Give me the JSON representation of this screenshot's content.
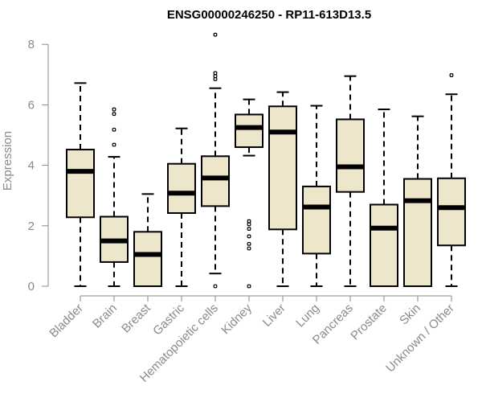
{
  "chart_data": {
    "type": "boxplot",
    "title": "ENSG00000246250 - RP11-613D13.5",
    "ylabel": "Expression",
    "xlabel": "",
    "ylim": [
      0,
      8.3
    ],
    "yticks": [
      0,
      2,
      4,
      6,
      8
    ],
    "grid": false,
    "colors": {
      "box_fill": "#ede6cb",
      "axis": "#8a8a8a"
    },
    "categories": [
      "Bladder",
      "Brain",
      "Breast",
      "Gastric",
      "Hematopoietic cells",
      "Kidney",
      "Liver",
      "Lung",
      "Pancreas",
      "Prostate",
      "Skin",
      "Unknown / Other"
    ],
    "boxes": [
      {
        "min": 0,
        "q1": 2.28,
        "median": 3.8,
        "q3": 4.52,
        "max": 6.72,
        "outliers": []
      },
      {
        "min": 0,
        "q1": 0.8,
        "median": 1.5,
        "q3": 2.3,
        "max": 4.28,
        "outliers": [
          4.68,
          5.18,
          5.7,
          5.85
        ]
      },
      {
        "min": 0,
        "q1": 0,
        "median": 1.05,
        "q3": 1.8,
        "max": 3.05,
        "outliers": []
      },
      {
        "min": 0,
        "q1": 2.42,
        "median": 3.08,
        "q3": 4.05,
        "max": 5.22,
        "outliers": []
      },
      {
        "min": 0.42,
        "q1": 2.65,
        "median": 3.58,
        "q3": 4.3,
        "max": 6.55,
        "outliers": [
          0,
          6.85,
          6.95,
          7.05,
          8.32
        ]
      },
      {
        "min": 4.32,
        "q1": 4.6,
        "median": 5.25,
        "q3": 5.68,
        "max": 6.18,
        "outliers": [
          0,
          1.25,
          1.4,
          1.65,
          1.9,
          2.05,
          2.15
        ]
      },
      {
        "min": 0,
        "q1": 1.88,
        "median": 5.1,
        "q3": 5.95,
        "max": 6.42,
        "outliers": []
      },
      {
        "min": 0,
        "q1": 1.08,
        "median": 2.62,
        "q3": 3.3,
        "max": 5.97,
        "outliers": []
      },
      {
        "min": 0,
        "q1": 3.12,
        "median": 3.95,
        "q3": 5.52,
        "max": 6.95,
        "outliers": []
      },
      {
        "min": 0,
        "q1": 0,
        "median": 1.92,
        "q3": 2.7,
        "max": 5.85,
        "outliers": []
      },
      {
        "min": 0,
        "q1": 0,
        "median": 2.83,
        "q3": 3.55,
        "max": 5.62,
        "outliers": []
      },
      {
        "min": 0,
        "q1": 1.35,
        "median": 2.6,
        "q3": 3.57,
        "max": 6.35,
        "outliers": [
          6.98
        ]
      }
    ]
  }
}
